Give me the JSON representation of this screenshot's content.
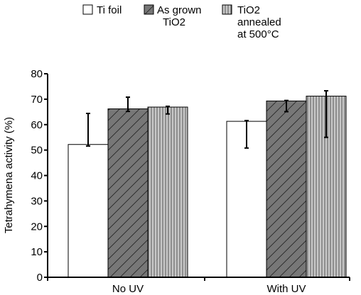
{
  "chart_data": {
    "type": "bar",
    "categories": [
      "No UV",
      "With UV"
    ],
    "series": [
      {
        "name": "Ti foil",
        "values": [
          52.2,
          61.3
        ],
        "errors": [
          [
            51.6,
            64.4
          ],
          [
            50.8,
            61.6
          ]
        ],
        "fill": "#ffffff",
        "pattern": "none"
      },
      {
        "name_lines": [
          "As grown",
          "TiO2"
        ],
        "values": [
          66.2,
          69.3
        ],
        "errors": [
          [
            65.2,
            70.8
          ],
          [
            65.1,
            69.5
          ]
        ],
        "fill": "#777777",
        "pattern": "diagonal-hatch"
      },
      {
        "name_lines": [
          "TiO2",
          "annealed",
          "at 500°C"
        ],
        "values": [
          66.9,
          71.2
        ],
        "errors": [
          [
            64.2,
            67.2
          ],
          [
            55.0,
            73.3
          ]
        ],
        "fill": "#bbbbbb",
        "pattern": "vertical-lines"
      }
    ],
    "ylabel": "Tetrahymena activity (%)",
    "ylim": [
      0,
      80
    ],
    "yticks": [
      0,
      10,
      20,
      30,
      40,
      50,
      60,
      70,
      80
    ],
    "grid": false,
    "legend_position": "top"
  }
}
